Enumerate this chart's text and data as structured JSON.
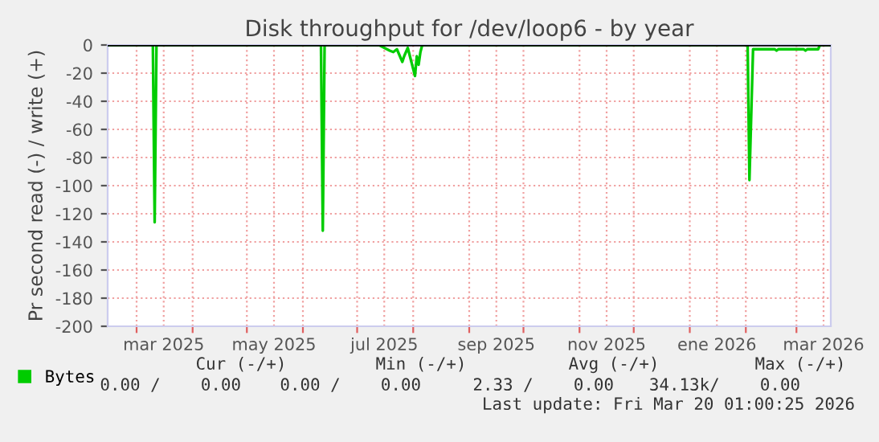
{
  "chart_data": {
    "type": "line",
    "title": "Disk throughput for /dev/loop6 - by year",
    "ylabel": "Pr second read (-) / write (+)",
    "series": [
      {
        "name": "Bytes",
        "color": "#00cc00",
        "x": [
          "2025-02-13",
          "2025-03-10",
          "2025-03-11",
          "2025-03-12",
          "2025-06-11",
          "2025-06-12",
          "2025-06-13",
          "2025-07-13",
          "2025-07-19",
          "2025-07-21",
          "2025-07-23",
          "2025-07-26",
          "2025-07-27",
          "2025-07-29",
          "2025-07-31",
          "2025-08-02",
          "2025-08-03",
          "2025-08-04",
          "2025-08-05",
          "2025-08-06",
          "2026-02-02",
          "2026-02-03",
          "2026-02-05",
          "2026-02-17",
          "2026-02-18",
          "2026-02-19",
          "2026-03-05",
          "2026-03-06",
          "2026-03-07",
          "2026-03-13",
          "2026-03-14",
          "2026-03-20"
        ],
        "values": [
          0,
          0,
          -126,
          0,
          0,
          -132,
          0,
          0,
          -4,
          -5,
          -3,
          -12,
          -8,
          -2,
          -12,
          -22,
          -8,
          -14,
          -5,
          0,
          0,
          -96,
          -3,
          -3,
          -4,
          -3,
          -3,
          -4,
          -3,
          -3,
          0,
          0
        ]
      }
    ],
    "xlim": [
      "2025-02-13",
      "2026-03-20"
    ],
    "xticks": [
      {
        "value": "2025-03-01",
        "label": null
      },
      {
        "value": "2025-03-16",
        "label": "mar 2025"
      },
      {
        "value": "2025-04-01",
        "label": null
      },
      {
        "value": "2025-05-01",
        "label": null
      },
      {
        "value": "2025-05-16",
        "label": "may 2025"
      },
      {
        "value": "2025-06-01",
        "label": null
      },
      {
        "value": "2025-07-01",
        "label": null
      },
      {
        "value": "2025-07-16",
        "label": "jul 2025"
      },
      {
        "value": "2025-08-01",
        "label": null
      },
      {
        "value": "2025-09-01",
        "label": null
      },
      {
        "value": "2025-09-16",
        "label": "sep 2025"
      },
      {
        "value": "2025-10-01",
        "label": null
      },
      {
        "value": "2025-11-01",
        "label": null
      },
      {
        "value": "2025-11-16",
        "label": "nov 2025"
      },
      {
        "value": "2025-12-01",
        "label": null
      },
      {
        "value": "2026-01-01",
        "label": null
      },
      {
        "value": "2026-01-16",
        "label": "ene 2026"
      },
      {
        "value": "2026-02-01",
        "label": null
      },
      {
        "value": "2026-03-01",
        "label": null
      },
      {
        "value": "2026-03-16",
        "label": "mar 2026"
      }
    ],
    "ylim": [
      -200,
      0
    ],
    "yticks": [
      0,
      -20,
      -40,
      -60,
      -80,
      -100,
      -120,
      -140,
      -160,
      -180,
      -200
    ],
    "grid": true,
    "legend": "bottom",
    "ref_lines": [
      {
        "axis": "y",
        "value": 0,
        "color": "#000000"
      }
    ],
    "annotations": [
      "Cur (-/+)",
      "Min (-/+)",
      "Avg (-/+)",
      "Max (-/+)",
      "0.00 /    0.00",
      "0.00 /    0.00",
      "2.33 /    0.00",
      "34.13k/    0.00",
      "Last update: Fri Mar 20 01:00:25 2026"
    ]
  }
}
